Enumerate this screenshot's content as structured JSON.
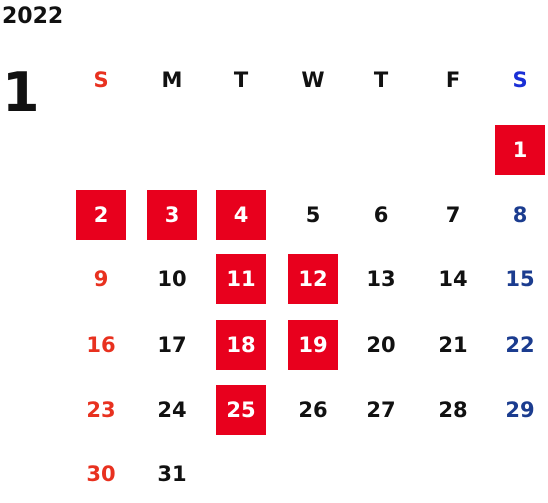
{
  "calendar": {
    "year": "2022",
    "month": "1",
    "weekdays": [
      "S",
      "M",
      "T",
      "W",
      "T",
      "F",
      "S"
    ],
    "days": [
      [
        "",
        "",
        "",
        "",
        "",
        "",
        "1"
      ],
      [
        "2",
        "3",
        "4",
        "5",
        "6",
        "7",
        "8"
      ],
      [
        "9",
        "10",
        "11",
        "12",
        "13",
        "14",
        "15"
      ],
      [
        "16",
        "17",
        "18",
        "19",
        "20",
        "21",
        "22"
      ],
      [
        "23",
        "24",
        "25",
        "26",
        "27",
        "28",
        "29"
      ],
      [
        "30",
        "31",
        "",
        "",
        "",
        "",
        ""
      ]
    ],
    "highlighted_days": [
      "1",
      "2",
      "3",
      "4",
      "11",
      "12",
      "18",
      "19",
      "25"
    ],
    "colors": {
      "sunday": "#e8311f",
      "saturday": "#1b3c8f",
      "saturday_header": "#1a2fd6",
      "weekday": "#111111",
      "highlight_bg": "#e8001d",
      "highlight_text": "#ffffff"
    }
  }
}
